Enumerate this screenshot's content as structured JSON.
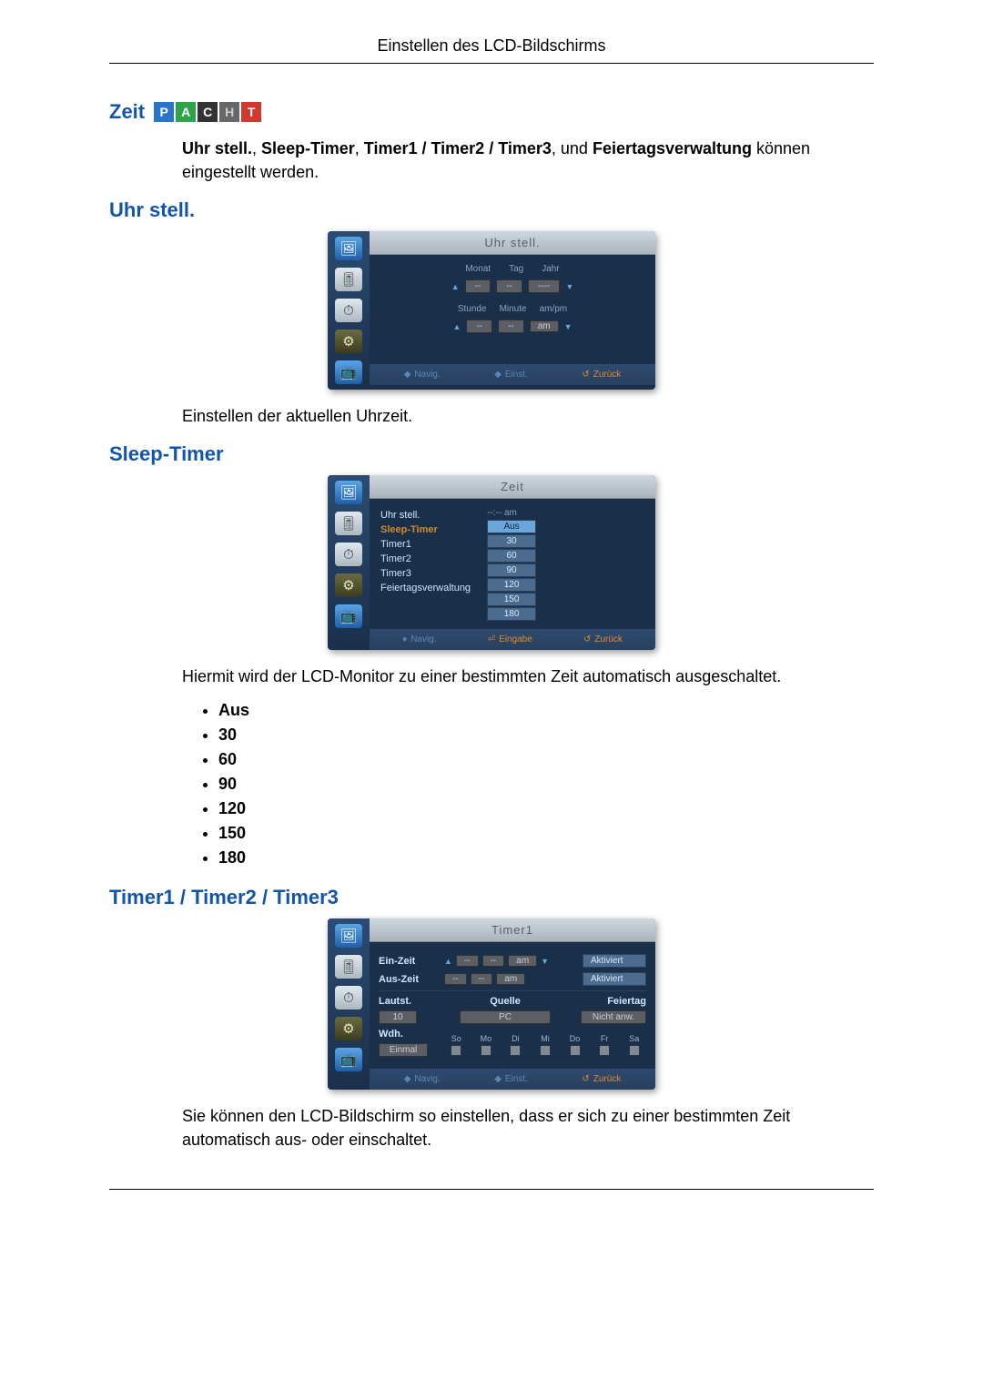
{
  "header": {
    "title": "Einstellen des LCD-Bildschirms"
  },
  "zeit": {
    "heading": "Zeit",
    "badges": [
      "P",
      "A",
      "C",
      "H",
      "T"
    ],
    "intro_parts": {
      "a": "Uhr stell.",
      "b": "Sleep-Timer",
      "c": "Timer1 / Timer2 / Timer3",
      "d": "Feiertagsverwaltung",
      "tail": " können eingestellt werden.",
      "comma1": ", ",
      "comma2": ", ",
      "und": ", und "
    }
  },
  "uhr": {
    "heading": "Uhr stell.",
    "osd_title": "Uhr stell.",
    "labels_top": [
      "Monat",
      "Tag",
      "Jahr"
    ],
    "labels_bot": [
      "Stunde",
      "Minute",
      "am/pm"
    ],
    "vals_top": [
      "--",
      "--",
      "----"
    ],
    "vals_bot": [
      "--",
      "--",
      "am"
    ],
    "foot": {
      "nav": "Navig.",
      "einst": "Einst.",
      "back": "Zurück"
    },
    "desc": "Einstellen der aktuellen Uhrzeit."
  },
  "sleep": {
    "heading": "Sleep-Timer",
    "osd_title": "Zeit",
    "menu": [
      "Uhr stell.",
      "Sleep-Timer",
      "Timer1",
      "Timer2",
      "Timer3",
      "Feiertagsverwaltung"
    ],
    "menu_value_prefix": "--:-- am",
    "options": [
      "Aus",
      "30",
      "60",
      "90",
      "120",
      "150",
      "180"
    ],
    "foot": {
      "nav": "Navig.",
      "enter": "Eingabe",
      "back": "Zurück"
    },
    "desc": "Hiermit wird der LCD-Monitor zu einer bestimmten Zeit automatisch ausgeschaltet.",
    "list": [
      "Aus",
      "30",
      "60",
      "90",
      "120",
      "150",
      "180"
    ]
  },
  "timers": {
    "heading": "Timer1 / Timer2 / Timer3",
    "osd_title": "Timer1",
    "rows": {
      "ein": {
        "label": "Ein-Zeit",
        "h": "--",
        "m": "--",
        "ap": "am",
        "akt": "Aktiviert"
      },
      "aus": {
        "label": "Aus-Zeit",
        "h": "--",
        "m": "--",
        "ap": "am",
        "akt": "Aktiviert"
      },
      "laut": {
        "label": "Lautst.",
        "val": "10"
      },
      "quelle": {
        "label": "Quelle",
        "val": "PC"
      },
      "feier": {
        "label": "Feiertag",
        "val": "Nicht anw."
      },
      "wdh": {
        "label": "Wdh.",
        "val": "Einmal"
      }
    },
    "days": [
      "So",
      "Mo",
      "Di",
      "Mi",
      "Do",
      "Fr",
      "Sa"
    ],
    "foot": {
      "nav": "Navig.",
      "einst": "Einst.",
      "back": "Zurück"
    },
    "desc": "Sie können den LCD-Bildschirm so einstellen, dass er sich zu einer bestimmten Zeit automatisch aus- oder einschaltet."
  },
  "rail_icons": [
    "🖼",
    "🎚",
    "⏱",
    "⚙",
    "📺"
  ]
}
